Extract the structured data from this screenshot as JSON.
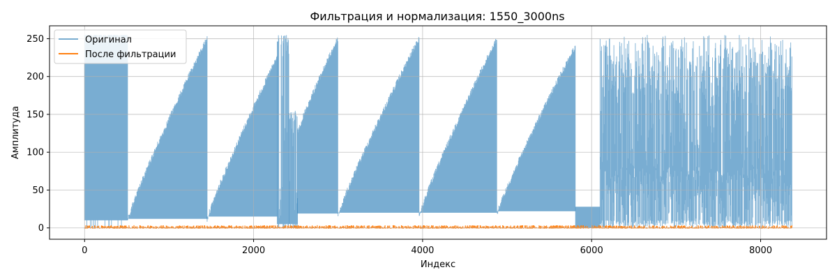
{
  "chart_data": {
    "type": "line",
    "title": "Фильтрация и нормализация: 1550_3000ns",
    "xlabel": "Индекс",
    "ylabel": "Амплитуда",
    "xlim": [
      -415,
      8780
    ],
    "ylim": [
      -15,
      267
    ],
    "xticks": [
      0,
      2000,
      4000,
      6000,
      8000
    ],
    "xtick_labels": [
      "0",
      "2000",
      "4000",
      "6000",
      "8000"
    ],
    "yticks": [
      0,
      50,
      100,
      150,
      200,
      250
    ],
    "ytick_labels": [
      "0",
      "50",
      "100",
      "150",
      "200",
      "250"
    ],
    "grid": true,
    "legend_position": "top-left",
    "colors": {
      "original": "#1f77b4",
      "filtered": "#ff7f0e",
      "grid": "#b0b0b0"
    },
    "series": [
      {
        "name": "Оригинал",
        "color": "#1f77b4",
        "alpha": 0.6,
        "segments": [
          {
            "x_start": 0,
            "x_end": 510,
            "low": 10,
            "high_start": 255,
            "high_end": 255,
            "kind": "burst"
          },
          {
            "x_start": 510,
            "x_end": 1450,
            "low": 12,
            "high_start": 14,
            "high_end": 255,
            "kind": "ramp"
          },
          {
            "x_start": 1450,
            "x_end": 2280,
            "low": 15,
            "high_start": 15,
            "high_end": 230,
            "kind": "ramp"
          },
          {
            "x_start": 2280,
            "x_end": 2420,
            "low": 5,
            "high_start": 10,
            "high_end": 255,
            "kind": "burst"
          },
          {
            "x_start": 2420,
            "x_end": 2520,
            "low": 5,
            "high_start": 5,
            "high_end": 155,
            "kind": "burst"
          },
          {
            "x_start": 2520,
            "x_end": 3000,
            "low": 19,
            "high_start": 130,
            "high_end": 255,
            "kind": "ramp"
          },
          {
            "x_start": 3000,
            "x_end": 3960,
            "low": 20,
            "high_start": 20,
            "high_end": 255,
            "kind": "ramp"
          },
          {
            "x_start": 3960,
            "x_end": 4880,
            "low": 20,
            "high_start": 20,
            "high_end": 255,
            "kind": "ramp"
          },
          {
            "x_start": 4880,
            "x_end": 5810,
            "low": 22,
            "high_start": 22,
            "high_end": 245,
            "kind": "ramp"
          },
          {
            "x_start": 5810,
            "x_end": 6100,
            "low": 0,
            "high_start": 28,
            "high_end": 28,
            "kind": "flat"
          },
          {
            "x_start": 6100,
            "x_end": 8370,
            "low": 0,
            "high_start": 255,
            "high_end": 255,
            "kind": "noise"
          }
        ]
      },
      {
        "name": "После фильтрации",
        "color": "#ff7f0e",
        "alpha": 1.0,
        "band": {
          "x_start": 0,
          "x_end": 8370,
          "min": -1,
          "max": 3.5
        }
      }
    ]
  }
}
